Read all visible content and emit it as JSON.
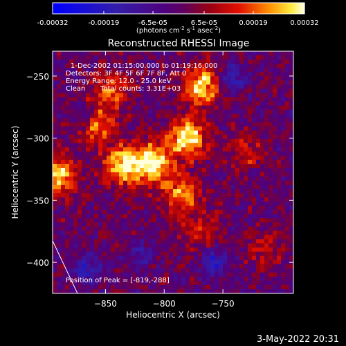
{
  "colorbar": {
    "tick_labels": [
      "-0.00032",
      "-0.00019",
      "-6.5e-05",
      "6.5e-05",
      "0.00019",
      "0.00032"
    ],
    "tick_values": [
      -0.00032,
      -0.00019,
      -6.5e-05,
      6.5e-05,
      0.00019,
      0.00032
    ],
    "range": [
      -0.00032,
      0.00032
    ],
    "unit_label": {
      "p1": "(photons cm",
      "sup1": "-2",
      "p2": " s",
      "sup2": "-1",
      "p3": " asec",
      "sup3": "-2",
      "p4": ")"
    }
  },
  "chart_data": {
    "type": "heatmap",
    "title": "Reconstructed RHESSI Image",
    "xlabel": "Heliocentric X (arcsec)",
    "ylabel": "Heliocentric Y (arcsec)",
    "xlim": [
      -895,
      -690
    ],
    "ylim": [
      -425,
      -230
    ],
    "x_ticks": [
      -850,
      -800,
      -750
    ],
    "x_tick_labels": [
      "−850",
      "−800",
      "−750"
    ],
    "y_ticks": [
      -250,
      -300,
      -350,
      -400
    ],
    "y_tick_labels": [
      "−250",
      "−300",
      "−350",
      "−400"
    ],
    "colormap": "red-yellow / blue diverging",
    "peak": [
      -819,
      -288
    ],
    "bright_regions": [
      {
        "x": -860,
        "y": -290,
        "level": 0.75
      },
      {
        "x": -835,
        "y": -322,
        "level": 0.95
      },
      {
        "x": -810,
        "y": -320,
        "level": 1.0
      },
      {
        "x": -780,
        "y": -300,
        "level": 1.0
      },
      {
        "x": -768,
        "y": -258,
        "level": 0.9
      },
      {
        "x": -785,
        "y": -345,
        "level": 0.7
      },
      {
        "x": -890,
        "y": -330,
        "level": 0.85
      },
      {
        "x": -845,
        "y": -262,
        "level": 0.55
      },
      {
        "x": -730,
        "y": -310,
        "level": 0.4
      },
      {
        "x": -770,
        "y": -375,
        "level": 0.4
      },
      {
        "x": -715,
        "y": -390,
        "level": 0.35
      }
    ],
    "negative_regions": [
      {
        "x": -868,
        "y": -285,
        "level": 0.5
      },
      {
        "x": -742,
        "y": -253,
        "level": 0.55
      },
      {
        "x": -758,
        "y": -400,
        "level": 0.6
      },
      {
        "x": -865,
        "y": -405,
        "level": 0.55
      },
      {
        "x": -820,
        "y": -393,
        "level": 0.35
      }
    ],
    "annotations": {
      "time": "1-Dec-2002 01:15:00.000 to 01:19:16.000",
      "detectors": "Detectors: 3F 4F 5F 6F 7F 8F, Att 0",
      "energy": "Energy Range: 12.0 - 25.0 keV",
      "clean_method": "Clean",
      "counts": "Total counts: 3.31E+03",
      "peak_label": "Position of Peak = [-819,-288]"
    }
  },
  "footer": {
    "date": "3-May-2022 20:31"
  }
}
